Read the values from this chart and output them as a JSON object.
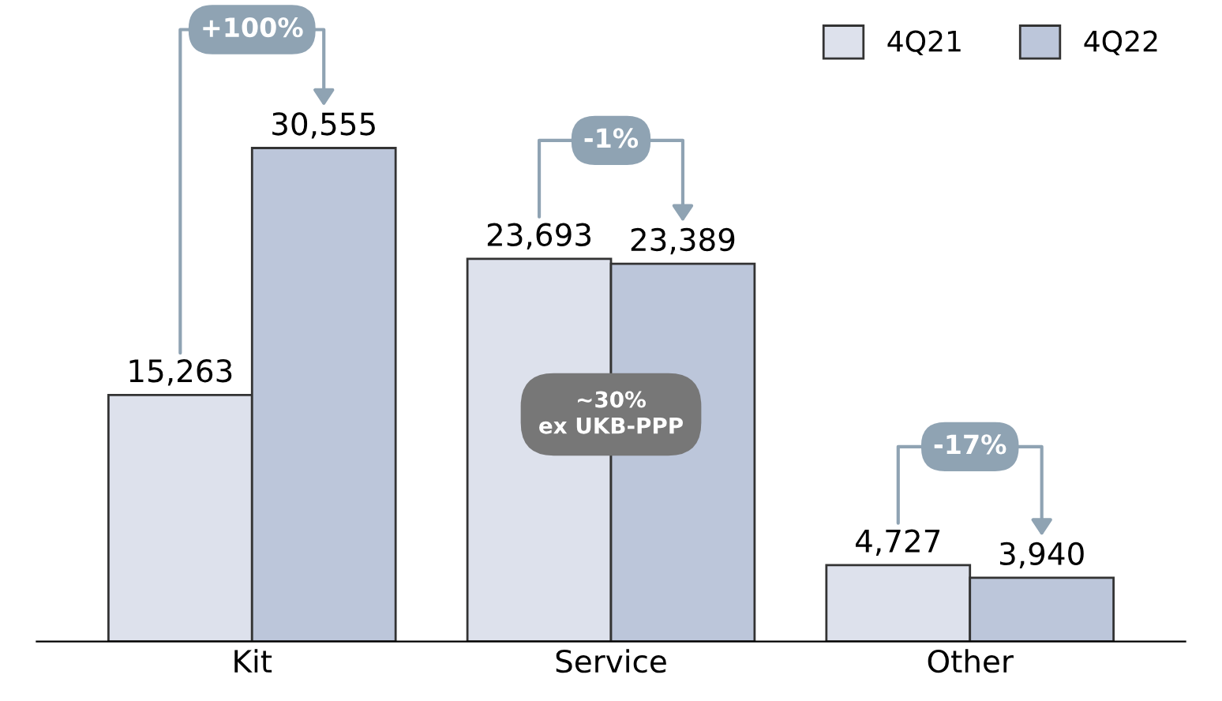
{
  "chart_data": {
    "type": "bar",
    "categories": [
      "Kit",
      "Service",
      "Other"
    ],
    "series": [
      {
        "name": "4Q21",
        "color": "#dde1ec",
        "values": [
          15263,
          23693,
          4727
        ],
        "value_labels": [
          "15,263",
          "23,693",
          "4,727"
        ]
      },
      {
        "name": "4Q22",
        "color": "#bcc6da",
        "values": [
          30555,
          23389,
          3940
        ],
        "value_labels": [
          "30,555",
          "23,389",
          "3,940"
        ]
      }
    ],
    "legend": "top right",
    "tick_labels": "x",
    "grid": false,
    "annotations": [
      "+100%",
      "-1%",
      "-17%",
      "~30%\nex UKB-PPP"
    ]
  }
}
